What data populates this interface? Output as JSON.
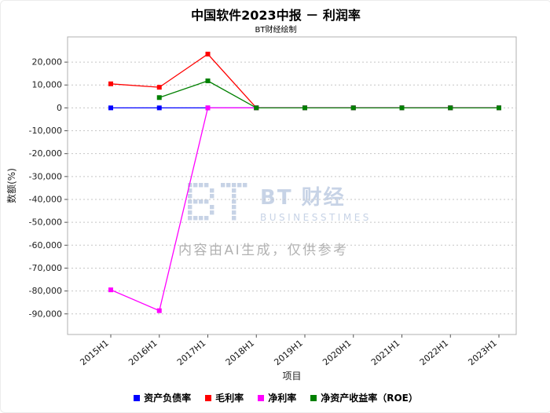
{
  "watermark": {
    "logo_text": "BT 财经",
    "logo_subtext": "BUSINESSTIMES",
    "ai_notice": "内容由AI生成，仅供参考",
    "logo_color": "#c7d3e6"
  },
  "chart_data": {
    "type": "line",
    "title": "中国软件2023中报 － 利润率",
    "subtitle": "BT财经绘制",
    "xlabel": "项目",
    "ylabel": "数额(%)",
    "categories": [
      "2015H1",
      "2016H1",
      "2017H1",
      "2018H1",
      "2019H1",
      "2020H1",
      "2021H1",
      "2022H1",
      "2023H1"
    ],
    "yticks": [
      20000,
      10000,
      0,
      -10000,
      -20000,
      -30000,
      -40000,
      -50000,
      -60000,
      -70000,
      -80000,
      -90000
    ],
    "ytick_labels": [
      "20,000",
      "10,000",
      "0",
      "-10,000",
      "-20,000",
      "-30,000",
      "-40,000",
      "-50,000",
      "-60,000",
      "-70,000",
      "-80,000",
      "-90,000"
    ],
    "ylim": [
      -99000,
      31000
    ],
    "grid": true,
    "legend_position": "bottom",
    "series": [
      {
        "name": "资产负债率",
        "color": "#0000ff",
        "values": [
          0,
          0,
          0,
          0,
          0,
          0,
          0,
          0,
          0
        ]
      },
      {
        "name": "毛利率",
        "color": "#ff0000",
        "values": [
          10500,
          9000,
          23500,
          0,
          0,
          0,
          0,
          0,
          0
        ]
      },
      {
        "name": "净利率",
        "color": "#ff00ff",
        "values": [
          -79500,
          -88600,
          0,
          0,
          0,
          0,
          0,
          0,
          0
        ]
      },
      {
        "name": "净资产收益率（ROE）",
        "color": "#008000",
        "values": [
          null,
          4500,
          11800,
          0,
          0,
          0,
          0,
          0,
          0
        ]
      }
    ]
  }
}
